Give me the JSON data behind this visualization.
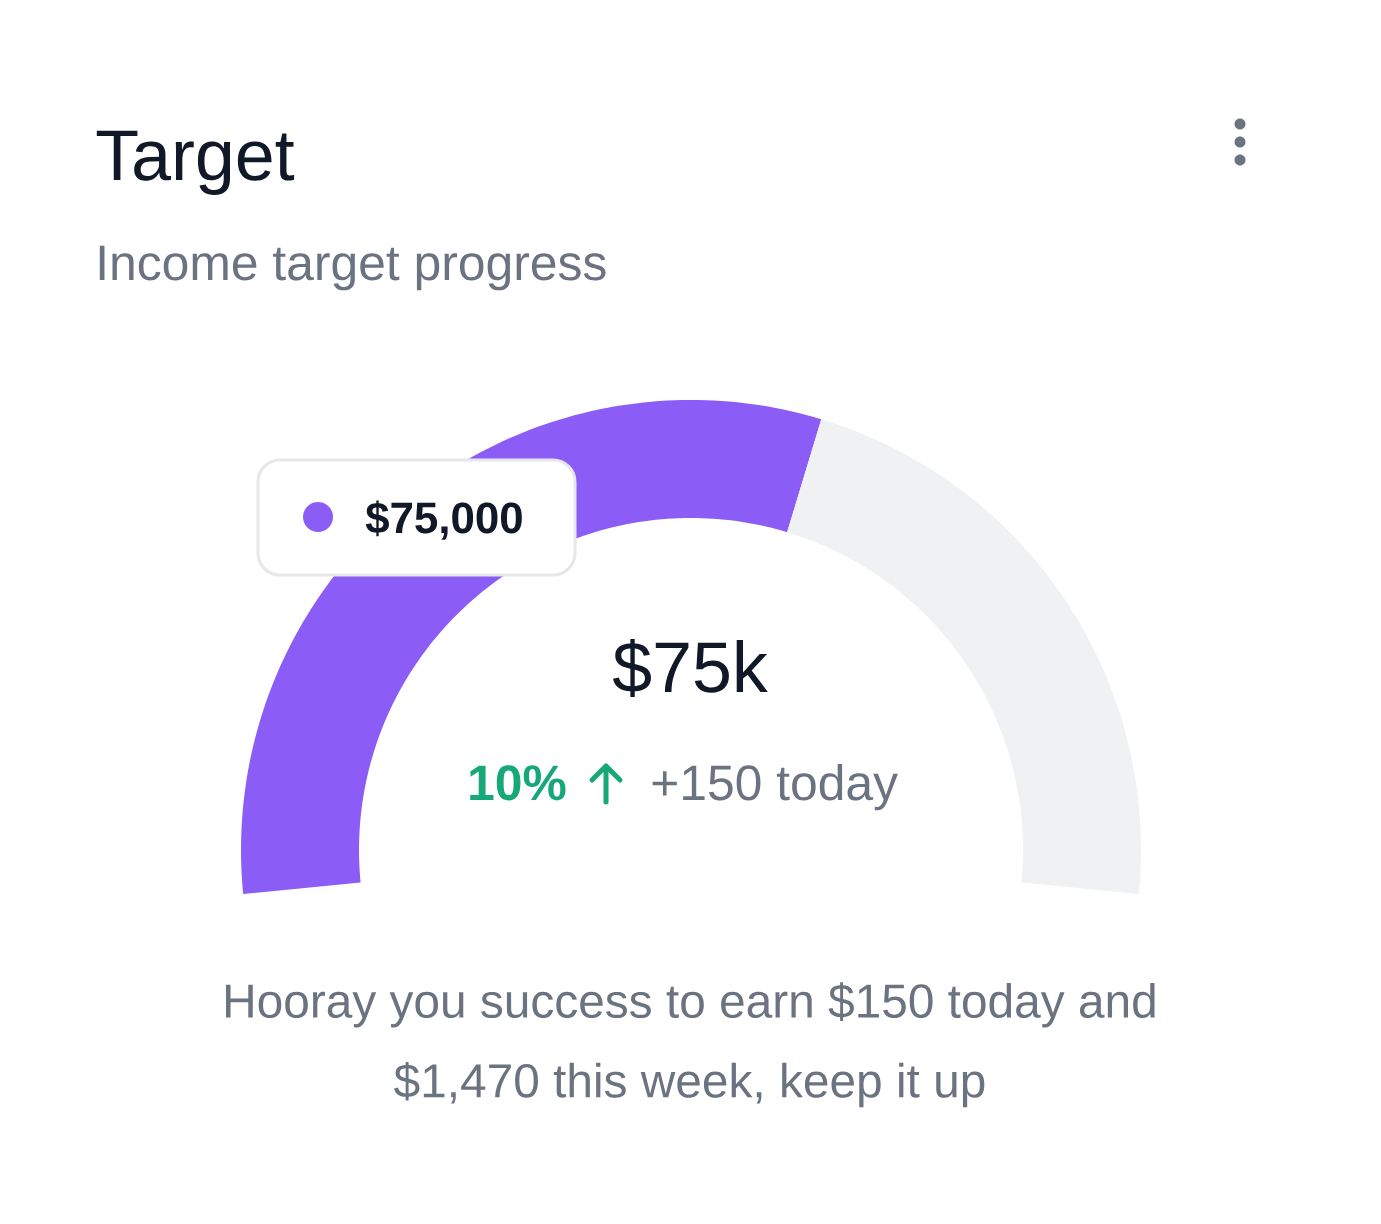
{
  "chart_data": {
    "type": "donut",
    "title": "Target",
    "subtitle": "Income target progress",
    "categories": [
      null,
      null
    ],
    "values": [
      58.8,
      41.2
    ],
    "colors": [
      "#8b5cf6",
      "#f0f1f3"
    ],
    "annotations": [
      "$75,000",
      "$75k",
      "10%",
      "+150 today",
      "Hooray you success to earn $150 today and $1,470 this week, keep it up"
    ]
  }
}
